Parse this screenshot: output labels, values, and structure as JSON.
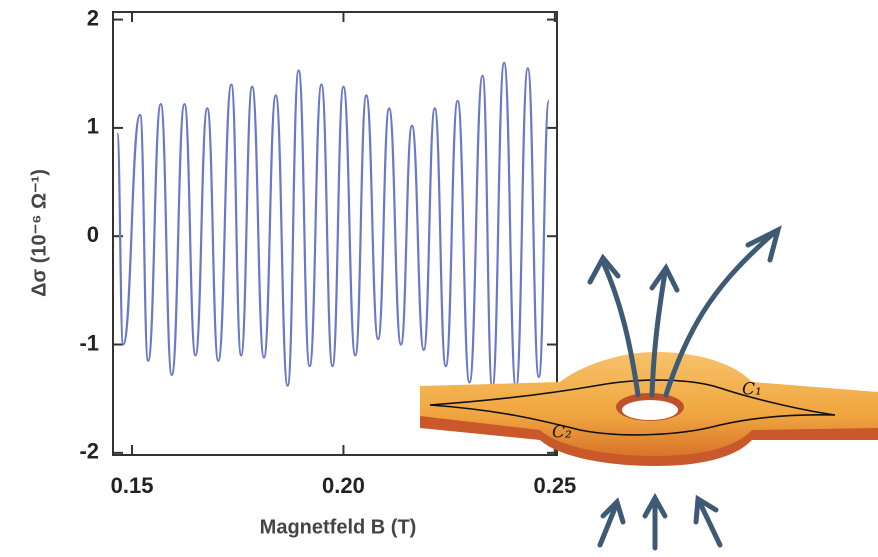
{
  "chart_data": {
    "type": "line",
    "xlabel": "Magnetfeld  B (T)",
    "ylabel": "Δσ (10⁻⁶ Ω⁻¹)",
    "x": [
      0.1465,
      0.1479,
      0.1519,
      0.1538,
      0.1568,
      0.1594,
      0.1624,
      0.165,
      0.1678,
      0.1704,
      0.1735,
      0.1758,
      0.1784,
      0.1812,
      0.184,
      0.1868,
      0.1894,
      0.192,
      0.1948,
      0.1974,
      0.2,
      0.2028,
      0.2054,
      0.2082,
      0.2108,
      0.2136,
      0.2162,
      0.219,
      0.2216,
      0.2242,
      0.227,
      0.2298,
      0.2329,
      0.2352,
      0.238,
      0.2408,
      0.2436,
      0.2462,
      0.2486
    ],
    "values": [
      0.95,
      -1.0,
      1.12,
      -1.15,
      1.22,
      -1.28,
      1.22,
      -1.1,
      1.18,
      -1.15,
      1.4,
      -1.1,
      1.38,
      -1.12,
      1.3,
      -1.38,
      1.53,
      -1.2,
      1.4,
      -1.2,
      1.38,
      -1.1,
      1.3,
      -0.95,
      1.18,
      -1.0,
      1.02,
      -1.05,
      1.18,
      -1.2,
      1.25,
      -1.35,
      1.48,
      -1.4,
      1.6,
      -1.4,
      1.55,
      -1.3,
      1.25
    ],
    "color": "#6a78c8",
    "xlim": [
      0.1455,
      0.2505
    ],
    "ylim": [
      -2.02,
      2.07
    ],
    "xticks": [
      0.15,
      {
        "value": 0.2,
        "label": "0.20"
      },
      0.25
    ],
    "yticks": [
      2,
      1,
      0,
      -1,
      -2
    ]
  },
  "illustration": {
    "labels": [
      "C₁",
      "C₂"
    ]
  }
}
